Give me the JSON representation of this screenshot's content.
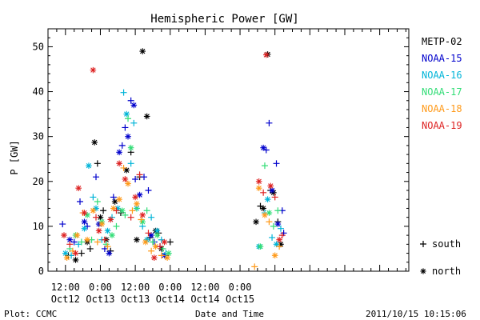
{
  "chart_data": {
    "type": "scatter",
    "title": "Hemispheric Power [GW]",
    "ylabel": "P [GW]",
    "xlabel": "Date and Time",
    "footer_left": "Plot: CCMC",
    "footer_right": "2011/10/15 10:15:06",
    "ylim": [
      0,
      54
    ],
    "xlim_hours_from_oct12_00": [
      6,
      130
    ],
    "y_ticks": [
      "0",
      "10",
      "20",
      "30",
      "40",
      "50"
    ],
    "x_ticks": [
      {
        "hour": 12,
        "time": "12:00",
        "date": "Oct12"
      },
      {
        "hour": 24,
        "time": "0:00",
        "date": "Oct13"
      },
      {
        "hour": 36,
        "time": "12:00",
        "date": "Oct13"
      },
      {
        "hour": 48,
        "time": "0:00",
        "date": "Oct14"
      },
      {
        "hour": 60,
        "time": "12:00",
        "date": "Oct14"
      },
      {
        "hour": 72,
        "time": "0:00",
        "date": "Oct15"
      }
    ],
    "legend_position": "right",
    "marker_legend": [
      {
        "symbol": "+",
        "label": "south"
      },
      {
        "symbol": "*",
        "label": "north"
      }
    ],
    "series": [
      {
        "name": "METP-02",
        "color": "#000000",
        "points": [
          [
            13.0,
            3.5,
            "+"
          ],
          [
            15.5,
            2.5,
            "*"
          ],
          [
            17.5,
            4.0,
            "+"
          ],
          [
            19.5,
            6.5,
            "*"
          ],
          [
            20.5,
            5.0,
            "+"
          ],
          [
            22.0,
            28.7,
            "*"
          ],
          [
            23.0,
            24.0,
            "+"
          ],
          [
            24.0,
            12.0,
            "*"
          ],
          [
            25.0,
            13.5,
            "+"
          ],
          [
            26.0,
            7.0,
            "*"
          ],
          [
            27.5,
            4.5,
            "+"
          ],
          [
            29.0,
            15.5,
            "*"
          ],
          [
            31.0,
            13.0,
            "+"
          ],
          [
            33.0,
            22.5,
            "*"
          ],
          [
            34.5,
            26.5,
            "+"
          ],
          [
            36.5,
            7.0,
            "*"
          ],
          [
            37.5,
            21.0,
            "+"
          ],
          [
            38.5,
            49.0,
            "*"
          ],
          [
            40.0,
            34.5,
            "*"
          ],
          [
            41.0,
            7.5,
            "+"
          ],
          [
            43.0,
            9.0,
            "*"
          ],
          [
            44.0,
            8.5,
            "+"
          ],
          [
            45.0,
            5.0,
            "*"
          ],
          [
            46.5,
            3.5,
            "+"
          ],
          [
            48.0,
            6.5,
            "+"
          ],
          [
            77.5,
            11.0,
            "*"
          ],
          [
            79.0,
            14.5,
            "+"
          ],
          [
            80.0,
            14.0,
            "*"
          ],
          [
            81.5,
            48.3,
            "*"
          ],
          [
            82.5,
            18.0,
            "+"
          ],
          [
            83.5,
            17.5,
            "*"
          ],
          [
            85.0,
            11.0,
            "+"
          ],
          [
            86.0,
            6.0,
            "*"
          ]
        ]
      },
      {
        "name": "NOAA-15",
        "color": "#0000cc",
        "points": [
          [
            11.0,
            10.5,
            "+"
          ],
          [
            13.5,
            7.0,
            "*"
          ],
          [
            15.0,
            6.5,
            "+"
          ],
          [
            17.0,
            15.5,
            "+"
          ],
          [
            18.5,
            11.0,
            "*"
          ],
          [
            19.5,
            10.0,
            "+"
          ],
          [
            22.5,
            21.0,
            "+"
          ],
          [
            23.5,
            10.5,
            "*"
          ],
          [
            25.5,
            5.0,
            "+"
          ],
          [
            27.0,
            4.0,
            "*"
          ],
          [
            28.5,
            16.5,
            "+"
          ],
          [
            30.5,
            26.5,
            "*"
          ],
          [
            31.5,
            28.0,
            "+"
          ],
          [
            32.5,
            32.0,
            "+"
          ],
          [
            33.5,
            30.0,
            "*"
          ],
          [
            34.5,
            38.0,
            "+"
          ],
          [
            35.5,
            37.0,
            "*"
          ],
          [
            36.0,
            20.5,
            "+"
          ],
          [
            37.5,
            17.0,
            "*"
          ],
          [
            39.0,
            21.0,
            "+"
          ],
          [
            40.5,
            18.0,
            "+"
          ],
          [
            41.5,
            8.0,
            "*"
          ],
          [
            42.5,
            6.5,
            "+"
          ],
          [
            44.5,
            5.5,
            "+"
          ],
          [
            46.0,
            3.5,
            "*"
          ],
          [
            80.0,
            27.5,
            "*"
          ],
          [
            81.0,
            27.0,
            "+"
          ],
          [
            82.0,
            33.0,
            "+"
          ],
          [
            83.0,
            18.0,
            "*"
          ],
          [
            84.5,
            24.0,
            "+"
          ],
          [
            85.0,
            10.5,
            "*"
          ],
          [
            86.5,
            13.5,
            "+"
          ],
          [
            87.0,
            8.5,
            "+"
          ]
        ]
      },
      {
        "name": "NOAA-16",
        "color": "#00b4d8",
        "points": [
          [
            12.0,
            4.0,
            "*"
          ],
          [
            14.0,
            3.5,
            "+"
          ],
          [
            16.5,
            6.0,
            "+"
          ],
          [
            18.5,
            9.5,
            "*"
          ],
          [
            20.0,
            23.5,
            "*"
          ],
          [
            21.5,
            16.5,
            "+"
          ],
          [
            22.5,
            14.0,
            "*"
          ],
          [
            24.5,
            7.0,
            "+"
          ],
          [
            26.5,
            9.0,
            "*"
          ],
          [
            28.0,
            12.0,
            "+"
          ],
          [
            30.0,
            14.0,
            "*"
          ],
          [
            32.0,
            39.8,
            "+"
          ],
          [
            33.0,
            35.0,
            "*"
          ],
          [
            34.5,
            24.0,
            "+"
          ],
          [
            35.5,
            33.0,
            "+"
          ],
          [
            36.5,
            14.0,
            "*"
          ],
          [
            38.5,
            10.0,
            "+"
          ],
          [
            40.0,
            7.0,
            "*"
          ],
          [
            41.5,
            12.0,
            "+"
          ],
          [
            43.5,
            9.0,
            "*"
          ],
          [
            45.0,
            7.0,
            "+"
          ],
          [
            46.5,
            4.0,
            "+"
          ],
          [
            78.5,
            5.5,
            "*"
          ],
          [
            80.5,
            13.0,
            "+"
          ],
          [
            81.5,
            16.0,
            "*"
          ],
          [
            83.0,
            7.5,
            "+"
          ],
          [
            84.5,
            6.0,
            "*"
          ],
          [
            86.0,
            9.5,
            "+"
          ]
        ]
      },
      {
        "name": "NOAA-17",
        "color": "#33dd77",
        "points": [
          [
            13.5,
            5.0,
            "+"
          ],
          [
            15.5,
            8.0,
            "*"
          ],
          [
            17.5,
            6.5,
            "+"
          ],
          [
            19.5,
            12.5,
            "*"
          ],
          [
            21.0,
            7.0,
            "+"
          ],
          [
            23.0,
            15.5,
            "+"
          ],
          [
            24.5,
            11.0,
            "*"
          ],
          [
            26.0,
            6.0,
            "+"
          ],
          [
            28.0,
            8.0,
            "*"
          ],
          [
            29.5,
            10.0,
            "+"
          ],
          [
            31.5,
            13.5,
            "*"
          ],
          [
            32.5,
            12.5,
            "+"
          ],
          [
            33.5,
            34.0,
            "+"
          ],
          [
            34.5,
            27.5,
            "*"
          ],
          [
            36.5,
            14.0,
            "+"
          ],
          [
            38.5,
            11.0,
            "*"
          ],
          [
            40.0,
            13.5,
            "+"
          ],
          [
            42.0,
            6.5,
            "+"
          ],
          [
            43.5,
            8.0,
            "*"
          ],
          [
            45.5,
            5.0,
            "+"
          ],
          [
            47.5,
            4.0,
            "*"
          ],
          [
            79.0,
            5.5,
            "*"
          ],
          [
            80.5,
            23.5,
            "+"
          ],
          [
            82.0,
            13.0,
            "*"
          ],
          [
            83.5,
            10.0,
            "+"
          ],
          [
            85.0,
            13.5,
            "+"
          ]
        ]
      },
      {
        "name": "NOAA-18",
        "color": "#ff9a1a",
        "points": [
          [
            12.5,
            3.0,
            "*"
          ],
          [
            14.5,
            4.5,
            "+"
          ],
          [
            16.0,
            8.0,
            "*"
          ],
          [
            18.0,
            13.0,
            "+"
          ],
          [
            19.5,
            7.0,
            "*"
          ],
          [
            21.5,
            13.5,
            "*"
          ],
          [
            23.0,
            6.5,
            "+"
          ],
          [
            24.5,
            10.5,
            "*"
          ],
          [
            26.5,
            5.5,
            "+"
          ],
          [
            28.5,
            14.0,
            "*"
          ],
          [
            30.5,
            16.0,
            "*"
          ],
          [
            32.0,
            23.0,
            "+"
          ],
          [
            33.5,
            19.5,
            "*"
          ],
          [
            35.0,
            13.5,
            "+"
          ],
          [
            36.5,
            15.0,
            "*"
          ],
          [
            38.0,
            11.5,
            "+"
          ],
          [
            39.5,
            6.5,
            "*"
          ],
          [
            41.5,
            4.5,
            "+"
          ],
          [
            43.0,
            5.5,
            "*"
          ],
          [
            45.0,
            3.5,
            "+"
          ],
          [
            47.0,
            3.0,
            "*"
          ],
          [
            77.0,
            1.0,
            "+"
          ],
          [
            78.5,
            18.5,
            "*"
          ],
          [
            80.5,
            12.5,
            "*"
          ],
          [
            82.0,
            11.0,
            "+"
          ],
          [
            84.0,
            3.5,
            "*"
          ],
          [
            85.5,
            5.5,
            "+"
          ]
        ]
      },
      {
        "name": "NOAA-19",
        "color": "#dd2222",
        "points": [
          [
            11.5,
            8.0,
            "*"
          ],
          [
            13.5,
            6.0,
            "+"
          ],
          [
            15.5,
            4.0,
            "*"
          ],
          [
            16.5,
            18.5,
            "*"
          ],
          [
            18.5,
            13.0,
            "*"
          ],
          [
            21.5,
            44.8,
            "*"
          ],
          [
            22.5,
            12.0,
            "+"
          ],
          [
            23.5,
            9.0,
            "*"
          ],
          [
            25.5,
            7.0,
            "+"
          ],
          [
            27.5,
            11.5,
            "*"
          ],
          [
            29.5,
            13.5,
            "+"
          ],
          [
            30.5,
            24.0,
            "*"
          ],
          [
            32.5,
            20.5,
            "*"
          ],
          [
            34.5,
            12.0,
            "+"
          ],
          [
            36.0,
            16.5,
            "*"
          ],
          [
            37.5,
            21.5,
            "+"
          ],
          [
            38.5,
            12.5,
            "*"
          ],
          [
            40.5,
            8.5,
            "+"
          ],
          [
            42.5,
            3.0,
            "*"
          ],
          [
            44.5,
            5.5,
            "+"
          ],
          [
            46.0,
            6.5,
            "*"
          ],
          [
            78.5,
            20.0,
            "*"
          ],
          [
            80.0,
            17.5,
            "+"
          ],
          [
            81.0,
            48.2,
            "*"
          ],
          [
            82.5,
            19.0,
            "*"
          ],
          [
            84.0,
            16.5,
            "+"
          ],
          [
            85.5,
            7.0,
            "*"
          ],
          [
            86.5,
            8.0,
            "+"
          ]
        ]
      }
    ]
  }
}
